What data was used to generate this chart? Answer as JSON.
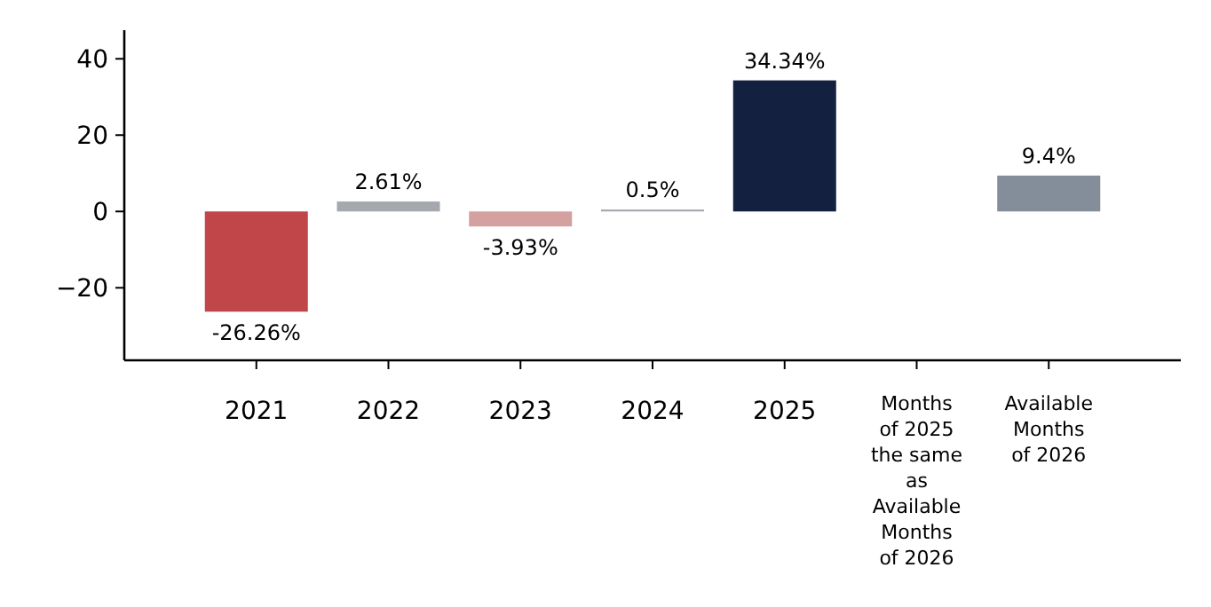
{
  "chart_data": {
    "type": "bar",
    "categories": [
      "2021",
      "2022",
      "2023",
      "2024",
      "2025",
      "Months of 2025 the same as Available Months of 2026",
      "Available Months of 2026"
    ],
    "values": [
      -26.26,
      2.61,
      -3.93,
      0.5,
      34.34,
      null,
      9.4
    ],
    "colors": [
      "#c0464a",
      "#a5a9ad",
      "#d4a0a0",
      "#a5a9ad",
      "#13203f",
      null,
      "#848d9a"
    ],
    "value_labels": [
      "-26.26%",
      "2.61%",
      "-3.93%",
      "0.5%",
      "34.34%",
      null,
      "9.4%"
    ],
    "ylim": [
      -39,
      47.5
    ],
    "yticks": [
      -20,
      0,
      20,
      40
    ],
    "grid": false
  }
}
